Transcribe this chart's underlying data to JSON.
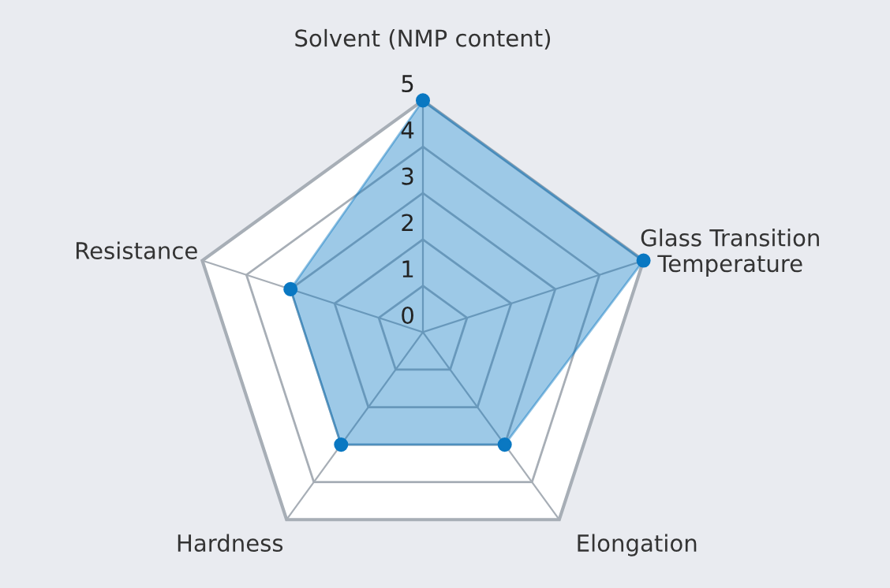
{
  "chart_data": {
    "type": "radar",
    "categories": [
      "Solvent (NMP content)",
      "Glass Transition\nTemperature",
      "Elongation",
      "Hardness",
      "Resistance"
    ],
    "series": [
      {
        "color": "#0a78c2",
        "values": [
          5,
          5,
          3,
          3,
          3
        ]
      }
    ],
    "ylim": [
      0,
      5
    ],
    "yticks": [
      0,
      1,
      2,
      3,
      4,
      5
    ],
    "grid": true,
    "marker": "circle",
    "line_style": "solid"
  }
}
